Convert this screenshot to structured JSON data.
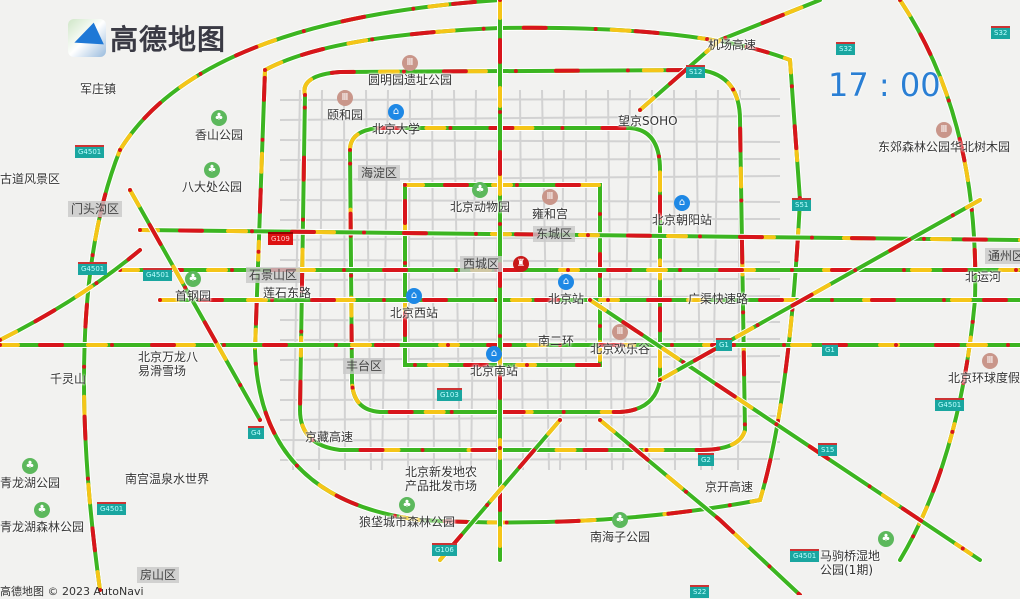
{
  "app": {
    "logo_text": "高德地图",
    "clock": "17 : 00",
    "copyright": "高德地图 © 2023 AutoNavi"
  },
  "colors": {
    "smooth": "#3cb521",
    "slow": "#f5c518",
    "congested": "#d8151b",
    "clock": "#2a7fd4"
  },
  "districts": [
    "门头沟区",
    "石景山区",
    "海淀区",
    "西城区",
    "东城区",
    "丰台区",
    "房山区",
    "通州区"
  ],
  "places": [
    "军庄镇",
    "香山公园",
    "八大处公园",
    "古道风景区",
    "首钢园",
    "北京万龙八易滑雪场",
    "千灵山",
    "颐和园",
    "圆明园遗址公园",
    "北京大学",
    "望京SOHO",
    "东郊森林公园华北树木园",
    "北京动物园",
    "雍和宫",
    "北京朝阳站",
    "北京西站",
    "北京站",
    "北京南站",
    "北京欢乐谷",
    "北京环球度假区",
    "北京新发地农产品批发市场",
    "南宫温泉水世界",
    "青龙湖公园",
    "青龙湖森林公园",
    "南海子公园",
    "马驹桥湿地公园(1期)",
    "狼垡城市森林公园",
    "莲石东路",
    "广渠快速路",
    "南二环",
    "机场高速",
    "京开高速",
    "北运河",
    "京藏高速"
  ],
  "road_shields": [
    "G4501",
    "G4501",
    "G4501",
    "G4501",
    "G4501",
    "G4501",
    "G109",
    "G4",
    "G103",
    "G1",
    "G1",
    "G2",
    "S12",
    "S32",
    "S32",
    "S51",
    "S15",
    "S22",
    "G106"
  ],
  "icons": [
    "park-icon",
    "historic-site-icon",
    "train-station-icon",
    "tiananmen-icon",
    "zoo-icon",
    "university-icon",
    "building-icon",
    "market-icon"
  ]
}
